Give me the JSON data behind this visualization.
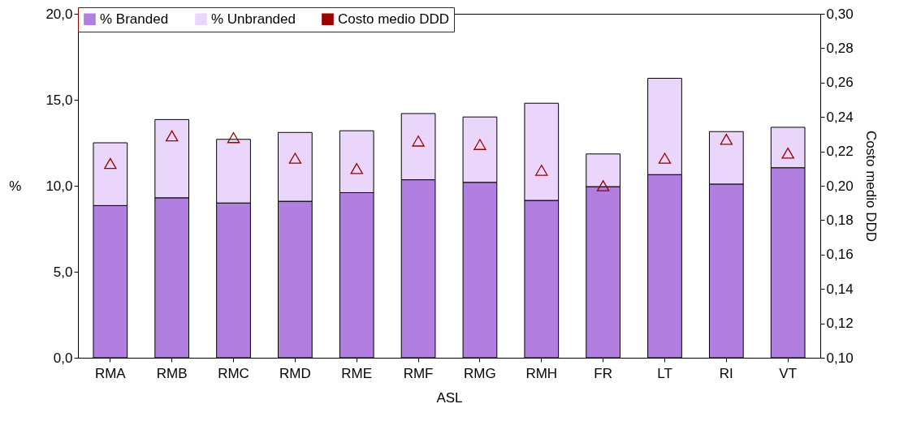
{
  "chart_data": {
    "type": "bar",
    "stacked": true,
    "xlabel": "ASL",
    "ylabel": "%",
    "y2label": "Costo medio DDD",
    "legend": "top",
    "marker": "triangle",
    "categories": [
      "RMA",
      "RMB",
      "RMC",
      "RMD",
      "RME",
      "RMF",
      "RMG",
      "RMH",
      "FR",
      "LT",
      "RI",
      "VT"
    ],
    "series": [
      {
        "name": "% Branded",
        "color": "#b07fe0",
        "values": [
          8.85,
          9.3,
          9.0,
          9.1,
          9.6,
          10.35,
          10.2,
          9.15,
          9.95,
          10.65,
          10.1,
          11.05
        ]
      },
      {
        "name": "% Unbranded",
        "color": "#ead6fb",
        "values": [
          3.65,
          4.55,
          3.7,
          4.0,
          3.6,
          3.85,
          3.8,
          5.65,
          1.9,
          5.6,
          3.05,
          2.35
        ]
      },
      {
        "name": "Costo medio DDD",
        "color": "#990000",
        "type": "scatter",
        "axis": "y2",
        "values": [
          0.213,
          0.229,
          0.228,
          0.216,
          0.21,
          0.226,
          0.224,
          0.209,
          0.2,
          0.216,
          0.227,
          0.219
        ]
      }
    ],
    "ylim": [
      0,
      20
    ],
    "yticks": [
      {
        "value": 0,
        "label": "0,0"
      },
      {
        "value": 5,
        "label": "5,0"
      },
      {
        "value": 10,
        "label": "10,0"
      },
      {
        "value": 15,
        "label": "15,0"
      },
      {
        "value": 20,
        "label": "20,0"
      }
    ],
    "y2lim": [
      0.1,
      0.3
    ],
    "y2ticks": [
      {
        "value": 0.1,
        "label": "0,10"
      },
      {
        "value": 0.12,
        "label": "0,12"
      },
      {
        "value": 0.14,
        "label": "0,14"
      },
      {
        "value": 0.16,
        "label": "0,16"
      },
      {
        "value": 0.18,
        "label": "0,18"
      },
      {
        "value": 0.2,
        "label": "0,20"
      },
      {
        "value": 0.22,
        "label": "0,22"
      },
      {
        "value": 0.24,
        "label": "0,24"
      },
      {
        "value": 0.26,
        "label": "0,26"
      },
      {
        "value": 0.28,
        "label": "0,28"
      },
      {
        "value": 0.3,
        "label": "0,30"
      }
    ]
  }
}
